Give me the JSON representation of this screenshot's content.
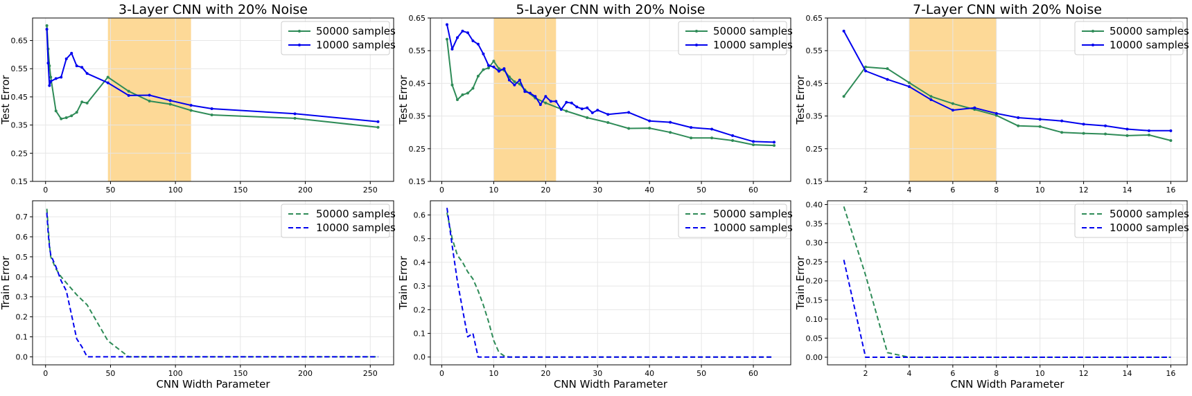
{
  "chart_data": [
    {
      "type": "line",
      "title": "3-Layer CNN with 20% Noise",
      "xlabel": "",
      "ylabel": "Test Error",
      "xlim": [
        -10,
        268
      ],
      "ylim": [
        0.15,
        0.73
      ],
      "xticks": [
        0,
        50,
        100,
        150,
        200,
        250
      ],
      "yticks": [
        0.15,
        0.25,
        0.35,
        0.45,
        0.55,
        0.65
      ],
      "ytick_labels": [
        "0.15",
        "0.25",
        "0.35",
        "0.45",
        "0.55",
        "0.65"
      ],
      "highlight": [
        48,
        112
      ],
      "grid": true,
      "legend": "top-right",
      "line_style": "solid",
      "series": [
        {
          "name": "50000 samples",
          "color": "#2e8b57",
          "x": [
            1,
            2,
            3,
            4,
            8,
            12,
            16,
            20,
            24,
            28,
            32,
            48,
            64,
            80,
            96,
            112,
            128,
            192,
            256
          ],
          "y": [
            0.703,
            0.62,
            0.56,
            0.52,
            0.4,
            0.372,
            0.376,
            0.383,
            0.395,
            0.432,
            0.428,
            0.52,
            0.47,
            0.435,
            0.424,
            0.402,
            0.386,
            0.374,
            0.342
          ]
        },
        {
          "name": "10000 samples",
          "color": "#0000ee",
          "x": [
            1,
            2,
            3,
            4,
            8,
            12,
            16,
            20,
            24,
            28,
            32,
            48,
            64,
            80,
            96,
            112,
            128,
            192,
            256
          ],
          "y": [
            0.69,
            0.57,
            0.49,
            0.505,
            0.515,
            0.52,
            0.585,
            0.605,
            0.56,
            0.555,
            0.533,
            0.5,
            0.455,
            0.456,
            0.437,
            0.42,
            0.408,
            0.39,
            0.362
          ]
        }
      ]
    },
    {
      "type": "line",
      "title": "5-Layer CNN with 20% Noise",
      "xlabel": "",
      "ylabel": "Test Error",
      "xlim": [
        -2.2,
        67.2
      ],
      "ylim": [
        0.15,
        0.65
      ],
      "xticks": [
        0,
        10,
        20,
        30,
        40,
        50,
        60
      ],
      "yticks": [
        0.15,
        0.25,
        0.35,
        0.45,
        0.55,
        0.65
      ],
      "ytick_labels": [
        "0.15",
        "0.25",
        "0.35",
        "0.45",
        "0.55",
        "0.65"
      ],
      "highlight": [
        10,
        22
      ],
      "grid": true,
      "legend": "top-right",
      "line_style": "solid",
      "series": [
        {
          "name": "50000 samples",
          "color": "#2e8b57",
          "x": [
            1,
            2,
            3,
            4,
            5,
            6,
            7,
            8,
            9,
            10,
            11,
            12,
            13,
            14,
            15,
            16,
            18,
            20,
            24,
            28,
            32,
            36,
            40,
            44,
            48,
            52,
            56,
            60,
            64
          ],
          "y": [
            0.585,
            0.445,
            0.4,
            0.415,
            0.42,
            0.435,
            0.472,
            0.492,
            0.497,
            0.518,
            0.495,
            0.49,
            0.47,
            0.455,
            0.448,
            0.43,
            0.405,
            0.39,
            0.365,
            0.345,
            0.33,
            0.312,
            0.313,
            0.3,
            0.283,
            0.283,
            0.275,
            0.262,
            0.26
          ]
        },
        {
          "name": "10000 samples",
          "color": "#0000ee",
          "x": [
            1,
            2,
            3,
            4,
            5,
            6,
            7,
            8,
            9,
            10,
            11,
            12,
            13,
            14,
            15,
            16,
            17,
            18,
            19,
            20,
            21,
            22,
            23,
            24,
            25,
            26,
            27,
            28,
            29,
            30,
            32,
            36,
            40,
            44,
            48,
            52,
            56,
            60,
            64
          ],
          "y": [
            0.63,
            0.555,
            0.59,
            0.61,
            0.605,
            0.58,
            0.57,
            0.54,
            0.505,
            0.5,
            0.487,
            0.495,
            0.46,
            0.445,
            0.46,
            0.425,
            0.42,
            0.41,
            0.385,
            0.41,
            0.395,
            0.395,
            0.37,
            0.392,
            0.39,
            0.378,
            0.372,
            0.375,
            0.36,
            0.368,
            0.355,
            0.361,
            0.335,
            0.331,
            0.315,
            0.31,
            0.29,
            0.272,
            0.27
          ]
        }
      ]
    },
    {
      "type": "line",
      "title": "7-Layer CNN with 20% Noise",
      "xlabel": "",
      "ylabel": "Test Error",
      "xlim": [
        0.25,
        16.75
      ],
      "ylim": [
        0.15,
        0.65
      ],
      "xticks": [
        2,
        4,
        6,
        8,
        10,
        12,
        14,
        16
      ],
      "yticks": [
        0.15,
        0.25,
        0.35,
        0.45,
        0.55,
        0.65
      ],
      "ytick_labels": [
        "0.15",
        "0.25",
        "0.35",
        "0.45",
        "0.55",
        "0.65"
      ],
      "highlight": [
        4,
        8
      ],
      "grid": true,
      "legend": "top-right",
      "line_style": "solid",
      "series": [
        {
          "name": "50000 samples",
          "color": "#2e8b57",
          "x": [
            1,
            2,
            3,
            4,
            5,
            6,
            7,
            8,
            9,
            10,
            11,
            12,
            13,
            14,
            15,
            16
          ],
          "y": [
            0.41,
            0.5,
            0.495,
            0.452,
            0.41,
            0.388,
            0.37,
            0.352,
            0.32,
            0.318,
            0.3,
            0.297,
            0.295,
            0.29,
            0.292,
            0.275
          ]
        },
        {
          "name": "10000 samples",
          "color": "#0000ee",
          "x": [
            1,
            2,
            3,
            4,
            5,
            6,
            7,
            8,
            9,
            10,
            11,
            12,
            13,
            14,
            15,
            16
          ],
          "y": [
            0.61,
            0.488,
            0.462,
            0.44,
            0.4,
            0.368,
            0.375,
            0.358,
            0.345,
            0.34,
            0.335,
            0.325,
            0.32,
            0.31,
            0.305,
            0.305
          ]
        }
      ]
    },
    {
      "type": "line",
      "title": "",
      "xlabel": "CNN Width Parameter",
      "ylabel": "Train Error",
      "xlim": [
        -10,
        268
      ],
      "ylim": [
        -0.04,
        0.78
      ],
      "xticks": [
        0,
        50,
        100,
        150,
        200,
        250
      ],
      "yticks": [
        0.0,
        0.1,
        0.2,
        0.3,
        0.4,
        0.5,
        0.6,
        0.7
      ],
      "ytick_labels": [
        "0.0",
        "0.1",
        "0.2",
        "0.3",
        "0.4",
        "0.5",
        "0.6",
        "0.7"
      ],
      "grid": true,
      "legend": "top-right",
      "line_style": "dashed",
      "series": [
        {
          "name": "50000 samples",
          "color": "#2e8b57",
          "x": [
            1,
            2,
            3,
            4,
            8,
            12,
            16,
            20,
            24,
            28,
            32,
            48,
            64,
            80,
            96,
            112,
            128,
            192,
            256
          ],
          "y": [
            0.74,
            0.65,
            0.56,
            0.5,
            0.44,
            0.4,
            0.37,
            0.34,
            0.31,
            0.285,
            0.26,
            0.08,
            0.0,
            0.0,
            0.0,
            0.0,
            0.0,
            0.0,
            0.0
          ]
        },
        {
          "name": "10000 samples",
          "color": "#0000ee",
          "x": [
            1,
            2,
            3,
            4,
            8,
            12,
            16,
            20,
            24,
            28,
            32,
            48,
            64,
            80,
            96,
            112,
            128,
            192,
            256
          ],
          "y": [
            0.72,
            0.62,
            0.55,
            0.51,
            0.45,
            0.38,
            0.33,
            0.21,
            0.09,
            0.05,
            0.0,
            0.0,
            0.0,
            0.0,
            0.0,
            0.0,
            0.0,
            0.0,
            0.0
          ]
        }
      ]
    },
    {
      "type": "line",
      "title": "",
      "xlabel": "CNN Width Parameter",
      "ylabel": "Train Error",
      "xlim": [
        -2.2,
        67.2
      ],
      "ylim": [
        -0.033,
        0.66
      ],
      "xticks": [
        0,
        10,
        20,
        30,
        40,
        50,
        60
      ],
      "yticks": [
        0.0,
        0.1,
        0.2,
        0.3,
        0.4,
        0.5,
        0.6
      ],
      "ytick_labels": [
        "0.0",
        "0.1",
        "0.2",
        "0.3",
        "0.4",
        "0.5",
        "0.6"
      ],
      "grid": true,
      "legend": "top-right",
      "line_style": "dashed",
      "series": [
        {
          "name": "50000 samples",
          "color": "#2e8b57",
          "x": [
            1,
            2,
            3,
            4,
            5,
            6,
            7,
            8,
            9,
            10,
            11,
            12,
            13,
            14,
            16,
            20,
            24,
            28,
            32,
            36,
            40,
            44,
            48,
            52,
            56,
            60,
            64
          ],
          "y": [
            0.61,
            0.5,
            0.43,
            0.4,
            0.36,
            0.33,
            0.28,
            0.22,
            0.15,
            0.07,
            0.02,
            0.005,
            0.0,
            0.0,
            0.0,
            0.0,
            0.0,
            0.0,
            0.0,
            0.0,
            0.0,
            0.0,
            0.0,
            0.0,
            0.0,
            0.0,
            0.0
          ]
        },
        {
          "name": "10000 samples",
          "color": "#0000ee",
          "x": [
            1,
            2,
            3,
            4,
            5,
            6,
            7,
            8,
            9,
            10,
            12,
            16,
            20,
            24,
            28,
            32,
            36,
            40,
            44,
            48,
            52,
            56,
            60,
            64
          ],
          "y": [
            0.63,
            0.47,
            0.32,
            0.2,
            0.085,
            0.1,
            0.0,
            0.0,
            0.0,
            0.0,
            0.0,
            0.0,
            0.0,
            0.0,
            0.0,
            0.0,
            0.0,
            0.0,
            0.0,
            0.0,
            0.0,
            0.0,
            0.0,
            0.0
          ]
        }
      ]
    },
    {
      "type": "line",
      "title": "",
      "xlabel": "CNN Width Parameter",
      "ylabel": "Train Error",
      "xlim": [
        0.25,
        16.75
      ],
      "ylim": [
        -0.02,
        0.41
      ],
      "xticks": [
        2,
        4,
        6,
        8,
        10,
        12,
        14,
        16
      ],
      "yticks": [
        0.0,
        0.05,
        0.1,
        0.15,
        0.2,
        0.25,
        0.3,
        0.35,
        0.4
      ],
      "ytick_labels": [
        "0.00",
        "0.05",
        "0.10",
        "0.15",
        "0.20",
        "0.25",
        "0.30",
        "0.35",
        "0.40"
      ],
      "grid": true,
      "legend": "top-right",
      "line_style": "dashed",
      "series": [
        {
          "name": "50000 samples",
          "color": "#2e8b57",
          "x": [
            1,
            2,
            3,
            4,
            5,
            6,
            7,
            8,
            9,
            10,
            11,
            12,
            13,
            14,
            15,
            16
          ],
          "y": [
            0.395,
            0.215,
            0.012,
            0.0,
            0.0,
            0.0,
            0.0,
            0.0,
            0.0,
            0.0,
            0.0,
            0.0,
            0.0,
            0.0,
            0.0,
            0.0
          ]
        },
        {
          "name": "10000 samples",
          "color": "#0000ee",
          "x": [
            1,
            2,
            3,
            4,
            5,
            6,
            7,
            8,
            9,
            10,
            11,
            12,
            13,
            14,
            15,
            16
          ],
          "y": [
            0.255,
            0.0,
            0.0,
            0.0,
            0.0,
            0.0,
            0.0,
            0.0,
            0.0,
            0.0,
            0.0,
            0.0,
            0.0,
            0.0,
            0.0,
            0.0
          ]
        }
      ]
    }
  ],
  "colors": {
    "highlight": "#fdd997",
    "grid": "#e6e6e6",
    "axis": "#000000"
  }
}
